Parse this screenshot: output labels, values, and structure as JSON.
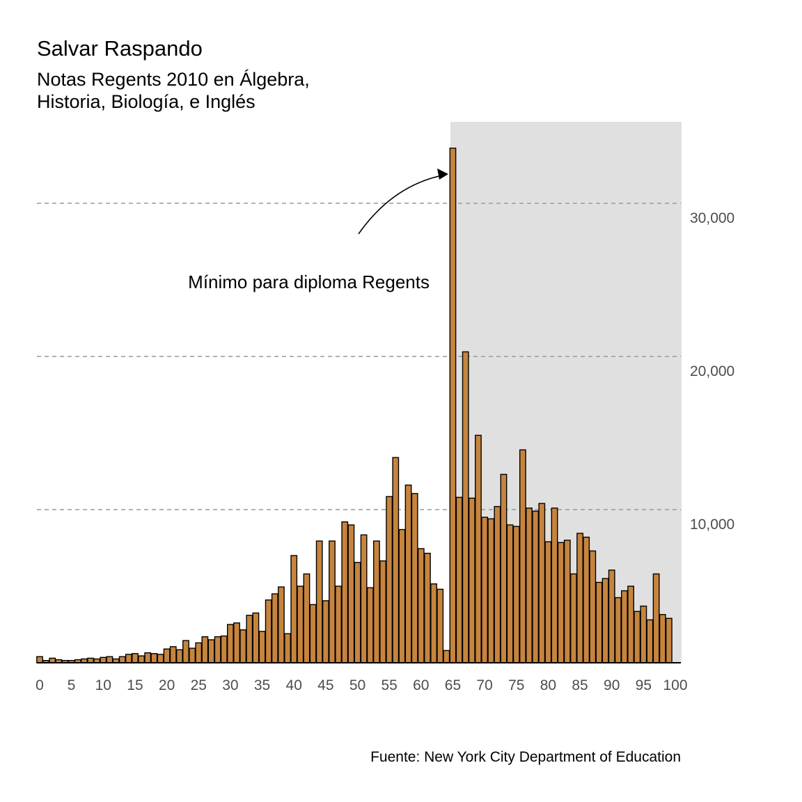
{
  "chart_data": {
    "type": "bar",
    "title": "Salvar Raspando",
    "subtitle_lines": [
      "Notas Regents 2010 en Álgebra,",
      "Historia, Biología, e Inglés"
    ],
    "caption": "Fuente: New York City Department of Education",
    "annotation": {
      "text": "Mínimo para diploma Regents",
      "points_to_x": 65
    },
    "highlight_range": [
      65,
      100
    ],
    "xlim": [
      0,
      100
    ],
    "ylim": [
      0,
      35000
    ],
    "x_ticks": [
      0,
      5,
      10,
      15,
      20,
      25,
      30,
      35,
      40,
      45,
      50,
      55,
      60,
      65,
      70,
      75,
      80,
      85,
      90,
      95,
      100
    ],
    "y_ticks": [
      10000,
      20000,
      30000
    ],
    "y_tick_labels": [
      "10,000",
      "20,000",
      "30,000"
    ],
    "y_axis_position": "right",
    "grid": "horizontal dashed",
    "colors": {
      "bar": "#c6843e",
      "bar_stroke": "#000000",
      "highlight": "#e0e0e0",
      "grid": "#999999"
    },
    "x": [
      0,
      1,
      2,
      3,
      4,
      5,
      6,
      7,
      8,
      9,
      10,
      11,
      12,
      13,
      14,
      15,
      16,
      17,
      18,
      19,
      20,
      21,
      22,
      23,
      24,
      25,
      26,
      27,
      28,
      29,
      30,
      31,
      32,
      33,
      34,
      35,
      36,
      37,
      38,
      39,
      40,
      41,
      42,
      43,
      44,
      45,
      46,
      47,
      48,
      49,
      50,
      51,
      52,
      53,
      54,
      55,
      56,
      57,
      58,
      59,
      60,
      61,
      62,
      63,
      64,
      65,
      66,
      67,
      68,
      69,
      70,
      71,
      72,
      73,
      74,
      75,
      76,
      77,
      78,
      79,
      80,
      81,
      82,
      83,
      84,
      85,
      86,
      87,
      88,
      89,
      90,
      91,
      92,
      93,
      94,
      95,
      96,
      97,
      98,
      99,
      100
    ],
    "values": [
      400,
      150,
      300,
      200,
      150,
      150,
      200,
      250,
      300,
      250,
      350,
      400,
      250,
      400,
      550,
      600,
      450,
      650,
      600,
      550,
      900,
      1050,
      850,
      1450,
      950,
      1300,
      1700,
      1500,
      1700,
      1750,
      2500,
      2600,
      2150,
      3100,
      3250,
      2050,
      4100,
      4500,
      4950,
      1900,
      7000,
      5000,
      5800,
      3800,
      7950,
      4050,
      7950,
      5000,
      9200,
      9000,
      6550,
      8350,
      4900,
      7950,
      6650,
      10850,
      13400,
      8700,
      11600,
      11050,
      7450,
      7150,
      5150,
      4800,
      800,
      33600,
      10800,
      20300,
      10750,
      14850,
      9500,
      9400,
      10200,
      12300,
      9000,
      8900,
      13900,
      10100,
      9900,
      10400,
      7900,
      10100,
      7850,
      8000,
      5800,
      8450,
      8200,
      7300,
      5250,
      5500,
      6050,
      4250,
      4700,
      5000,
      3350,
      3700,
      2800,
      5800,
      3150,
      2900,
      0
    ]
  }
}
